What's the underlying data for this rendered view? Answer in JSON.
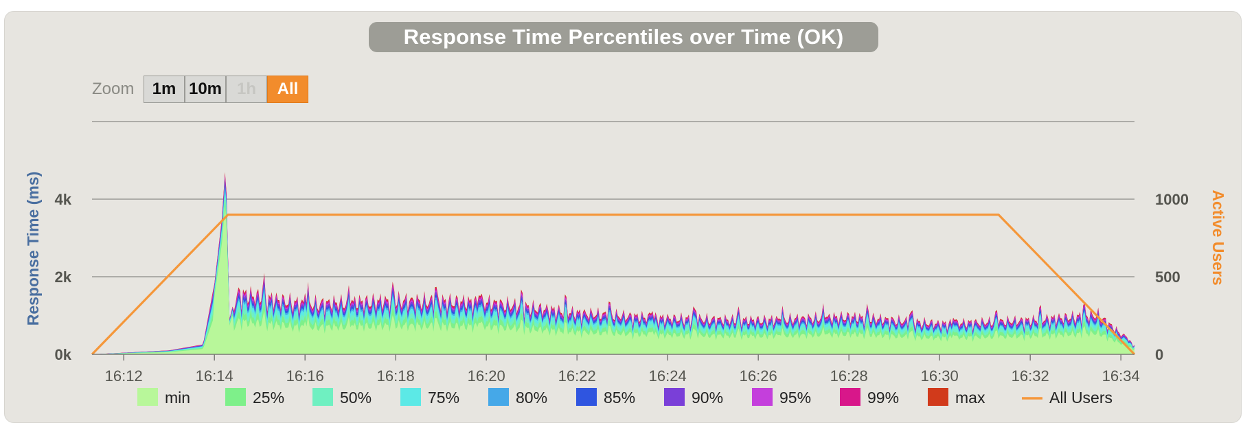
{
  "colors": {
    "panel": "#e7e5e0",
    "title_bg": "#9d9d96",
    "active_zoom": "#f28c2c",
    "left_axis_title": "#4a6fa0",
    "right_axis_title": "#f28c2c",
    "users_line": "#f5973a"
  },
  "zoom": {
    "label": "Zoom",
    "buttons": [
      {
        "label": "1m",
        "state": "normal"
      },
      {
        "label": "10m",
        "state": "normal"
      },
      {
        "label": "1h",
        "state": "disabled"
      },
      {
        "label": "All",
        "state": "active"
      }
    ]
  },
  "chart_data": {
    "type": "area",
    "title": "Response Time Percentiles over Time (OK)",
    "ylabel": "Response Time (ms)",
    "y2label": "Active Users",
    "ylim": [
      0,
      6000
    ],
    "y2lim": [
      0,
      1500
    ],
    "yticks": [
      "0k",
      "2k",
      "4k"
    ],
    "ytick_values": [
      0,
      2000,
      4000
    ],
    "y2ticks": [
      "0",
      "500",
      "1000"
    ],
    "y2tick_values": [
      0,
      500,
      1000
    ],
    "x_range_minutes": [
      "16:11:18",
      "16:34:18"
    ],
    "xticks": [
      "16:12",
      "16:14",
      "16:16",
      "16:18",
      "16:20",
      "16:22",
      "16:24",
      "16:26",
      "16:28",
      "16:30",
      "16:32",
      "16:34"
    ],
    "grid": true,
    "legend_position": "bottom",
    "series": [
      {
        "name": "min",
        "color": "#b8f79a",
        "kind": "area",
        "percentile_factor": 0.55
      },
      {
        "name": "25%",
        "color": "#7ef08a",
        "kind": "area",
        "percentile_factor": 0.65
      },
      {
        "name": "50%",
        "color": "#6ff0c1",
        "kind": "area",
        "percentile_factor": 0.74
      },
      {
        "name": "75%",
        "color": "#5ce9e6",
        "kind": "area",
        "percentile_factor": 0.82
      },
      {
        "name": "80%",
        "color": "#45a8e8",
        "kind": "area",
        "percentile_factor": 0.86
      },
      {
        "name": "85%",
        "color": "#2f55e0",
        "kind": "area",
        "percentile_factor": 0.9
      },
      {
        "name": "90%",
        "color": "#7a3fd8",
        "kind": "area",
        "percentile_factor": 0.94
      },
      {
        "name": "95%",
        "color": "#c43fdc",
        "kind": "area",
        "percentile_factor": 0.97
      },
      {
        "name": "99%",
        "color": "#d8178a",
        "kind": "area",
        "percentile_factor": 1.0
      },
      {
        "name": "max",
        "color": "#d13a1b",
        "kind": "area",
        "percentile_factor": 1.02
      },
      {
        "name": "All Users",
        "color": "#f5973a",
        "kind": "line",
        "axis": "right"
      }
    ],
    "users": [
      {
        "t": "16:11:18",
        "value": 0
      },
      {
        "t": "16:14:18",
        "value": 900
      },
      {
        "t": "16:31:18",
        "value": 900
      },
      {
        "t": "16:34:18",
        "value": 0
      }
    ],
    "response_99_envelope": [
      {
        "t": "16:11:18",
        "value": 0
      },
      {
        "t": "16:12:00",
        "value": 40
      },
      {
        "t": "16:13:00",
        "value": 100
      },
      {
        "t": "16:13:45",
        "value": 250
      },
      {
        "t": "16:14:00",
        "value": 1800
      },
      {
        "t": "16:14:10",
        "value": 3500
      },
      {
        "t": "16:14:15",
        "value": 4950
      },
      {
        "t": "16:14:20",
        "value": 900
      },
      {
        "t": "16:14:30",
        "value": 1700
      },
      {
        "t": "16:16:00",
        "value": 1400
      },
      {
        "t": "16:18:00",
        "value": 1500
      },
      {
        "t": "16:20:00",
        "value": 1450
      },
      {
        "t": "16:22:00",
        "value": 1150
      },
      {
        "t": "16:24:00",
        "value": 1000
      },
      {
        "t": "16:26:00",
        "value": 950
      },
      {
        "t": "16:28:00",
        "value": 1050
      },
      {
        "t": "16:30:00",
        "value": 850
      },
      {
        "t": "16:32:00",
        "value": 950
      },
      {
        "t": "16:33:30",
        "value": 1100
      },
      {
        "t": "16:34:18",
        "value": 250
      }
    ]
  }
}
